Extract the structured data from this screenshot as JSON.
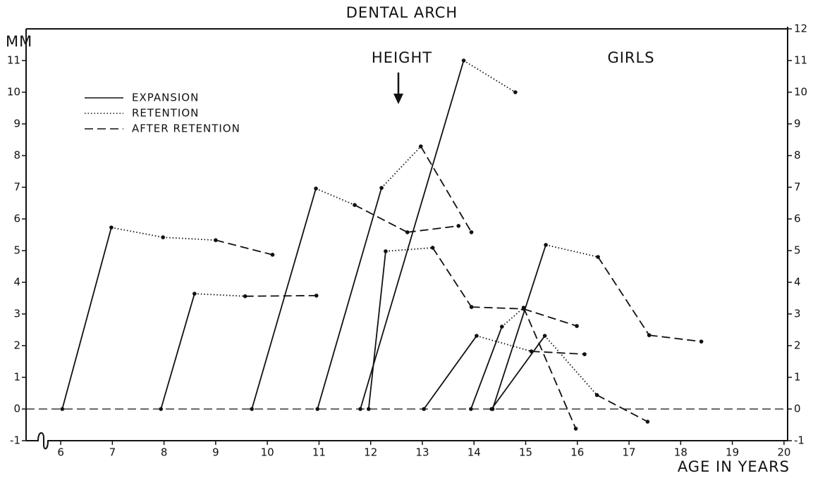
{
  "chart_data": {
    "type": "line",
    "title": "DENTAL ARCH",
    "ylabel": "MM",
    "xlabel": "AGE IN YEARS",
    "annotations": [
      "HEIGHT",
      "GIRLS"
    ],
    "xlim": [
      5.33,
      20.07
    ],
    "ylim": [
      -1,
      12
    ],
    "xticks": [
      6,
      7,
      8,
      9,
      10,
      11,
      12,
      13,
      14,
      15,
      16,
      17,
      18,
      19,
      20
    ],
    "yticks": [
      -1,
      0,
      1,
      2,
      3,
      4,
      5,
      6,
      7,
      8,
      9,
      10,
      11
    ],
    "y2ticks": [
      -1,
      0,
      1,
      2,
      3,
      4,
      5,
      6,
      7,
      8,
      9,
      10,
      11,
      12
    ],
    "color": "#111111",
    "legend": [
      {
        "name": "EXPANSION",
        "style": "solid"
      },
      {
        "name": "RETENTION",
        "style": "dotted"
      },
      {
        "name": "AFTER RETENTION",
        "style": "dashed"
      }
    ],
    "curves": [
      {
        "x": [
          6.03,
          6.98,
          7.98,
          9.0,
          10.1
        ],
        "y": [
          0,
          5.73,
          5.42,
          5.33,
          4.87
        ],
        "line_styles": [
          "solid",
          "dotted",
          "dotted",
          "dashed"
        ]
      },
      {
        "x": [
          7.94,
          8.59,
          9.57,
          10.95
        ],
        "y": [
          0,
          3.64,
          3.56,
          3.58
        ],
        "line_styles": [
          "solid",
          "dotted",
          "dashed"
        ]
      },
      {
        "x": [
          9.7,
          10.94,
          11.69,
          12.71,
          13.7
        ],
        "y": [
          0,
          6.96,
          6.44,
          5.58,
          5.78
        ],
        "line_styles": [
          "solid",
          "dotted",
          "dashed",
          "dashed"
        ]
      },
      {
        "x": [
          10.97,
          12.21,
          12.97,
          13.95
        ],
        "y": [
          0,
          6.98,
          8.29,
          5.58
        ],
        "line_styles": [
          "solid",
          "dotted",
          "dashed"
        ]
      },
      {
        "x": [
          11.8,
          13.8,
          14.8
        ],
        "y": [
          0,
          11.0,
          10.0
        ],
        "line_styles": [
          "solid",
          "dotted"
        ]
      },
      {
        "x": [
          11.96,
          12.29,
          13.2,
          13.95,
          14.96,
          15.99
        ],
        "y": [
          0,
          4.98,
          5.09,
          3.22,
          3.16,
          2.62
        ],
        "line_styles": [
          "solid",
          "dotted",
          "dashed",
          "dashed",
          "dashed"
        ]
      },
      {
        "x": [
          13.03,
          14.05,
          15.11,
          16.14
        ],
        "y": [
          0,
          2.31,
          1.82,
          1.73
        ],
        "line_styles": [
          "solid",
          "dotted",
          "dashed"
        ]
      },
      {
        "x": [
          13.94,
          14.54,
          14.96,
          15.97
        ],
        "y": [
          0,
          2.6,
          3.2,
          -0.62
        ],
        "line_styles": [
          "solid",
          "dotted",
          "dashed"
        ]
      },
      {
        "x": [
          14.36,
          15.39,
          16.4,
          17.39,
          18.4
        ],
        "y": [
          0,
          5.18,
          4.8,
          2.33,
          2.13
        ],
        "line_styles": [
          "solid",
          "dotted",
          "dashed",
          "dashed"
        ]
      },
      {
        "x": [
          14.34,
          15.37,
          16.38,
          17.36
        ],
        "y": [
          0,
          2.31,
          0.44,
          -0.4
        ],
        "line_styles": [
          "solid",
          "dotted",
          "dashed"
        ]
      }
    ]
  }
}
